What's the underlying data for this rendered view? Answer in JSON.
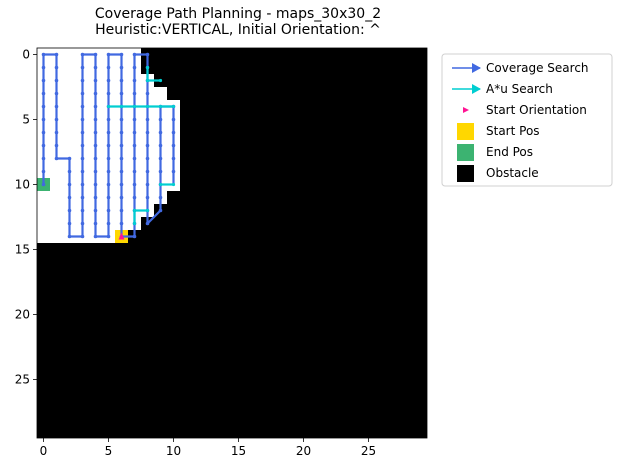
{
  "chart_data": {
    "type": "heatmap",
    "title_lines": [
      "Coverage Path Planning - maps_30x30_2",
      "Heuristic:VERTICAL, Initial Orientation: ^"
    ],
    "grid": {
      "rows": 30,
      "cols": 30
    },
    "xticks": [
      0,
      5,
      10,
      15,
      20,
      25
    ],
    "yticks": [
      0,
      5,
      10,
      15,
      20,
      25
    ],
    "free_rows": [
      {
        "row": 0,
        "from": 0,
        "to": 7
      },
      {
        "row": 1,
        "from": 0,
        "to": 7
      },
      {
        "row": 2,
        "from": 0,
        "to": 8
      },
      {
        "row": 3,
        "from": 0,
        "to": 9
      },
      {
        "row": 4,
        "from": 0,
        "to": 10
      },
      {
        "row": 5,
        "from": 0,
        "to": 10
      },
      {
        "row": 6,
        "from": 0,
        "to": 10
      },
      {
        "row": 7,
        "from": 0,
        "to": 10
      },
      {
        "row": 8,
        "from": 0,
        "to": 10
      },
      {
        "row": 9,
        "from": 0,
        "to": 10
      },
      {
        "row": 10,
        "from": 0,
        "to": 10
      },
      {
        "row": 11,
        "from": 0,
        "to": 9
      },
      {
        "row": 12,
        "from": 0,
        "to": 8
      },
      {
        "row": 13,
        "from": 0,
        "to": 7
      },
      {
        "row": 14,
        "from": 0,
        "to": 6
      }
    ],
    "coverage_path": [
      [
        0,
        10
      ],
      [
        0,
        0
      ],
      [
        1,
        0
      ],
      [
        1,
        8
      ],
      [
        2,
        8
      ],
      [
        2,
        14
      ],
      [
        3,
        14
      ],
      [
        3,
        0
      ],
      [
        4,
        0
      ],
      [
        4,
        14
      ],
      [
        5,
        14
      ],
      [
        5,
        5
      ],
      [
        5,
        5
      ],
      [
        5,
        0
      ],
      [
        6,
        0
      ],
      [
        6,
        14
      ],
      [
        7,
        14
      ],
      [
        7,
        0
      ],
      [
        8,
        0
      ],
      [
        8,
        13
      ],
      [
        9,
        12
      ],
      [
        9,
        4
      ],
      [
        10,
        4
      ],
      [
        10,
        10
      ]
    ],
    "astar_paths": [
      [
        [
          8,
          1
        ],
        [
          8,
          2
        ],
        [
          9,
          2
        ]
      ],
      [
        [
          5,
          4
        ],
        [
          10,
          4
        ]
      ],
      [
        [
          9,
          10
        ],
        [
          10,
          10
        ]
      ],
      [
        [
          8,
          12
        ],
        [
          7,
          12
        ],
        [
          7,
          13
        ]
      ]
    ],
    "start_pos": [
      6,
      14
    ],
    "end_pos": [
      0,
      10
    ],
    "start_orientation": "^",
    "legend": [
      {
        "label": "Coverage Search",
        "kind": "coverage",
        "color": "#4169e1"
      },
      {
        "label": "A*u Search",
        "kind": "astar",
        "color": "#00ced1"
      },
      {
        "label": "Start Orientation",
        "kind": "orientation",
        "color": "#ff1493"
      },
      {
        "label": "Start Pos",
        "kind": "start",
        "color": "#ffd700"
      },
      {
        "label": "End Pos",
        "kind": "end",
        "color": "#3cb371"
      },
      {
        "label": "Obstacle",
        "kind": "obstacle",
        "color": "#000000"
      }
    ],
    "legend_position": "upper right, outside axes"
  }
}
